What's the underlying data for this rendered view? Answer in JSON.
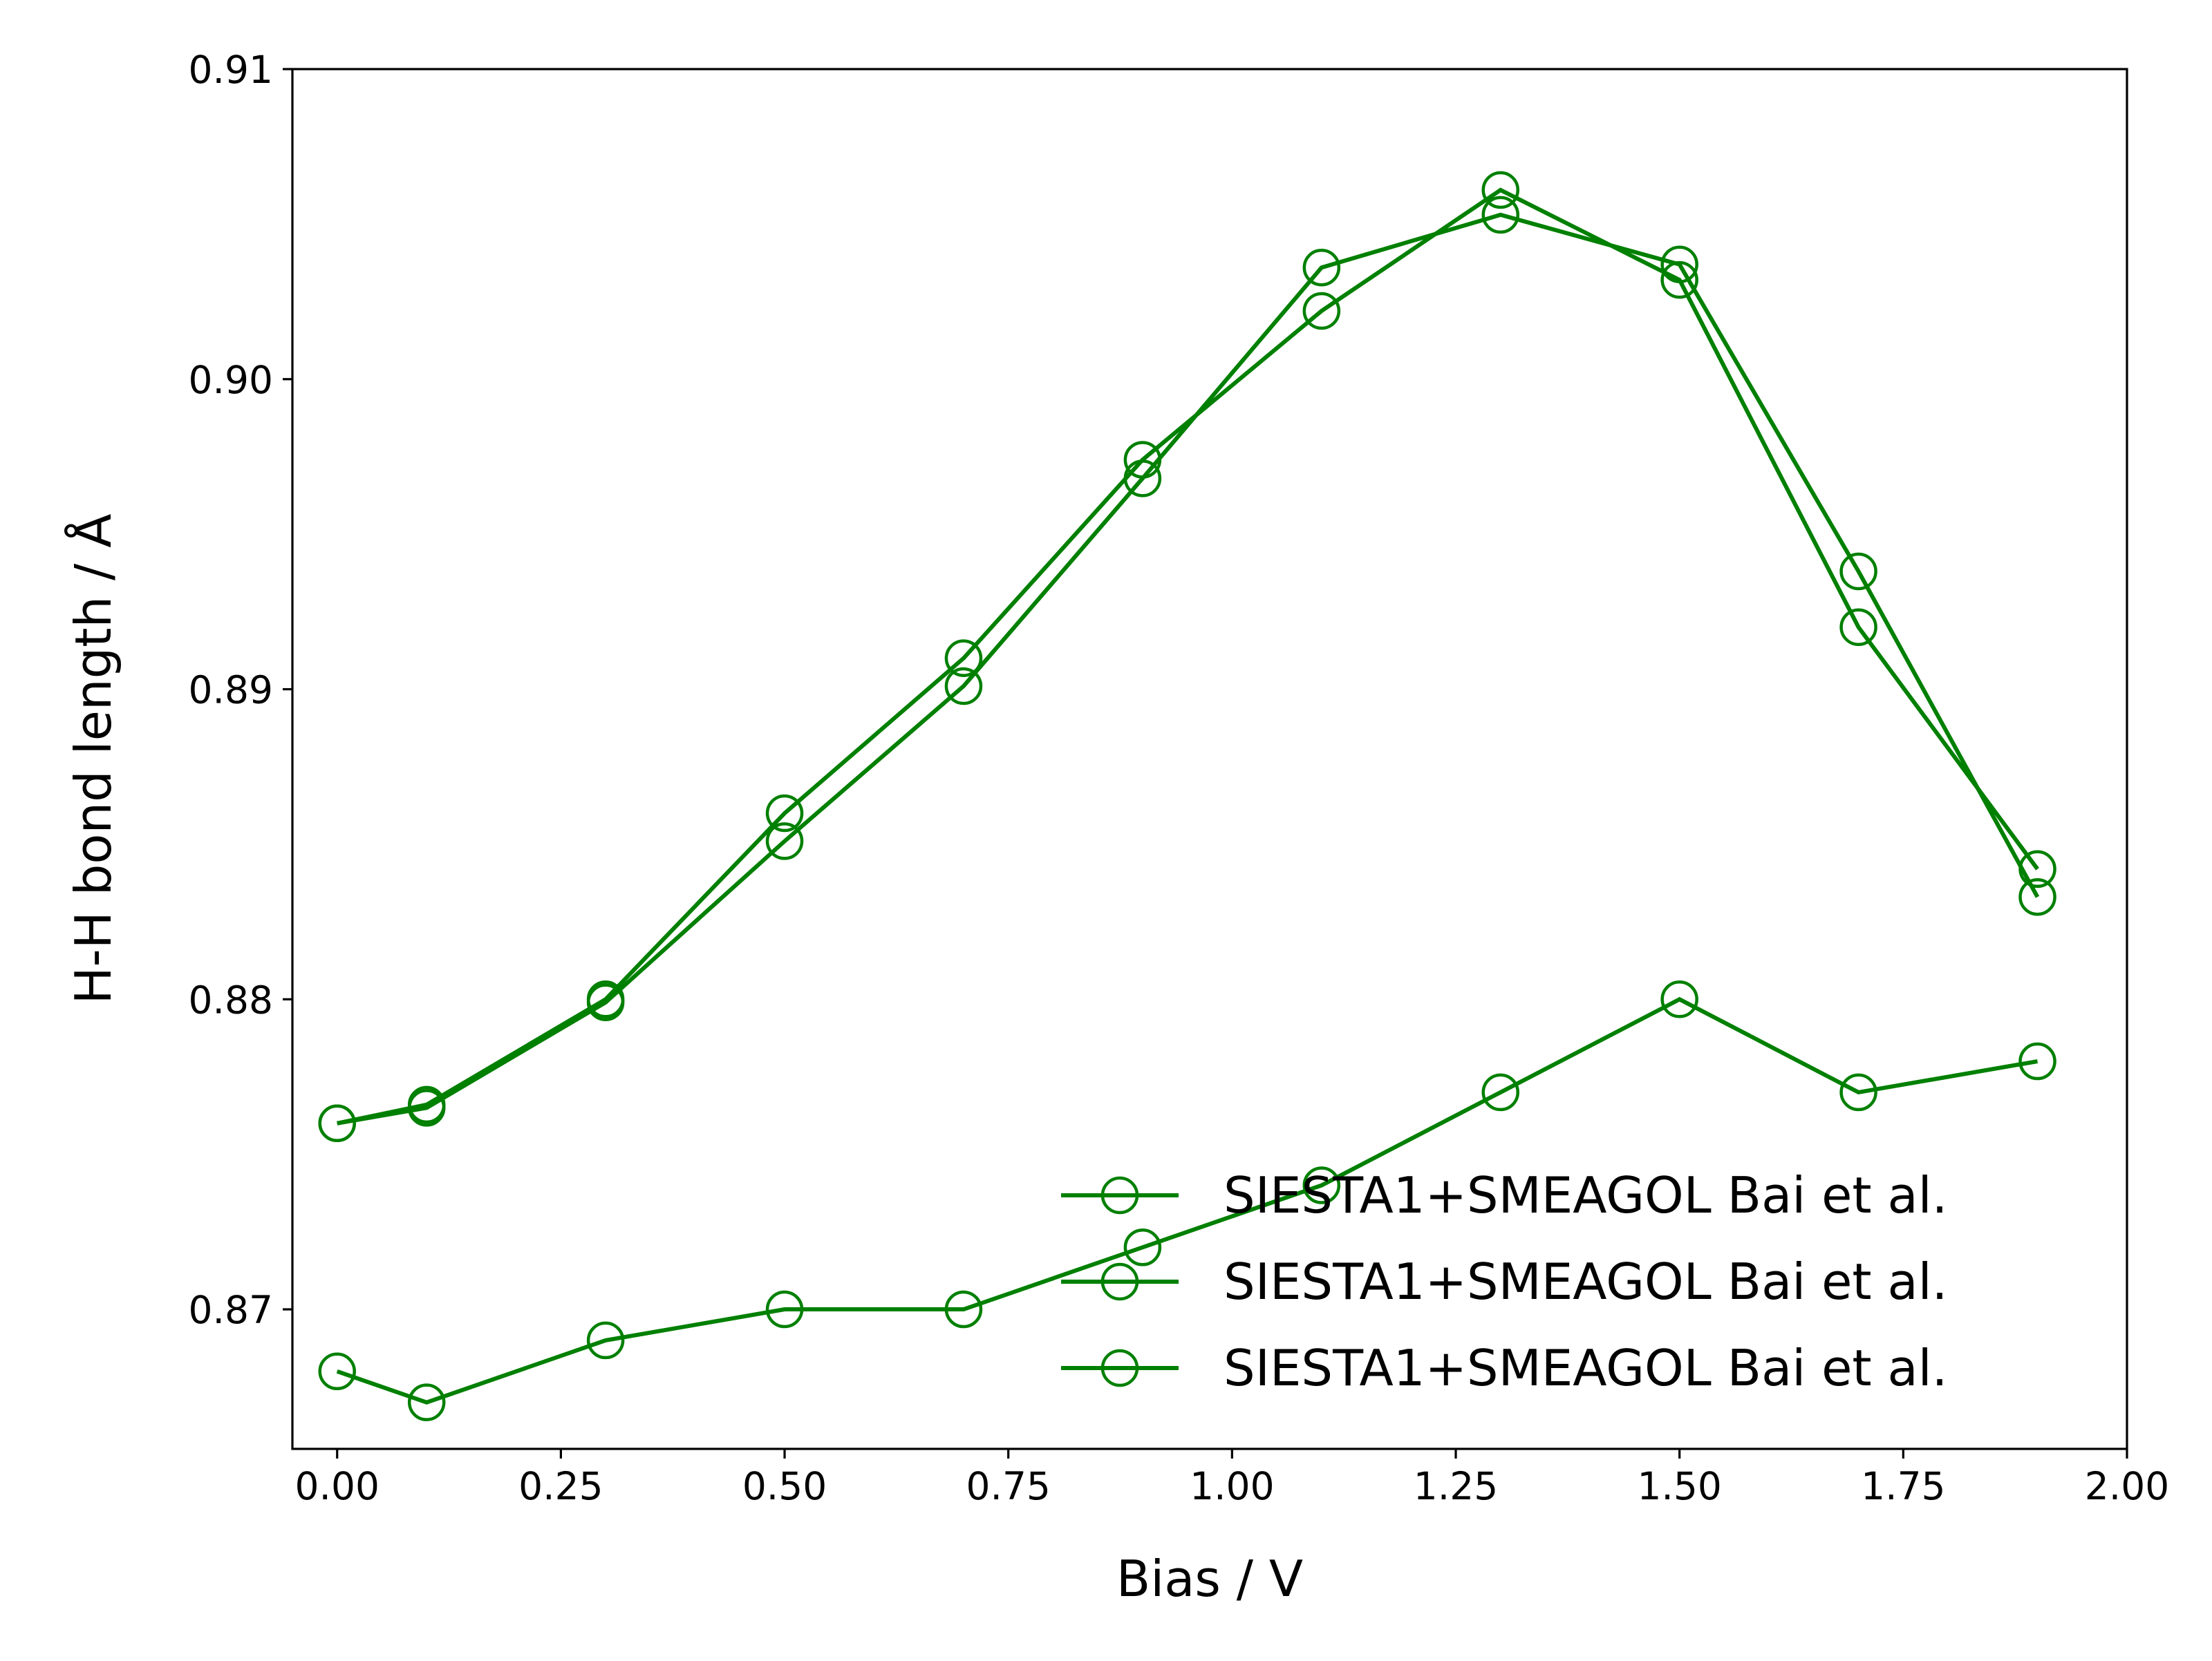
{
  "chart_data": {
    "type": "line",
    "title": "",
    "xlabel": "Bias / V",
    "ylabel": "H-H bond length / Å",
    "xlim": [
      -0.05,
      2.0
    ],
    "ylim": [
      0.8655,
      0.91
    ],
    "xticks": [
      0.0,
      0.25,
      0.5,
      0.75,
      1.0,
      1.25,
      1.5,
      1.75,
      2.0
    ],
    "xtick_labels": [
      "0.00",
      "0.25",
      "0.50",
      "0.75",
      "1.00",
      "1.25",
      "1.50",
      "1.75",
      "2.00"
    ],
    "yticks": [
      0.87,
      0.88,
      0.89,
      0.9,
      0.91
    ],
    "ytick_labels": [
      "0.87",
      "0.88",
      "0.89",
      "0.90",
      "0.91"
    ],
    "grid": false,
    "legend_position": "lower-right",
    "marker": "open-circle",
    "x": [
      0.0,
      0.1,
      0.3,
      0.5,
      0.7,
      0.9,
      1.1,
      1.3,
      1.5,
      1.7,
      1.9
    ],
    "series": [
      {
        "name": "SIESTA1+SMEAGOL Bai et al.",
        "color": "#008000",
        "values": [
          0.876,
          0.8765,
          0.8799,
          0.8851,
          0.8901,
          0.8968,
          0.9036,
          0.9053,
          0.9037,
          0.8938,
          0.8833
        ]
      },
      {
        "name": "SIESTA1+SMEAGOL Bai et al.",
        "color": "#008000",
        "values": [
          0.876,
          0.8766,
          0.88,
          0.886,
          0.891,
          0.8974,
          0.9022,
          0.9061,
          0.9032,
          0.892,
          0.8842
        ]
      },
      {
        "name": "SIESTA1+SMEAGOL Bai et al.",
        "color": "#008000",
        "values": [
          0.868,
          0.867,
          0.869,
          0.87,
          0.87,
          0.872,
          0.874,
          0.877,
          0.88,
          0.877,
          0.878
        ]
      }
    ]
  }
}
